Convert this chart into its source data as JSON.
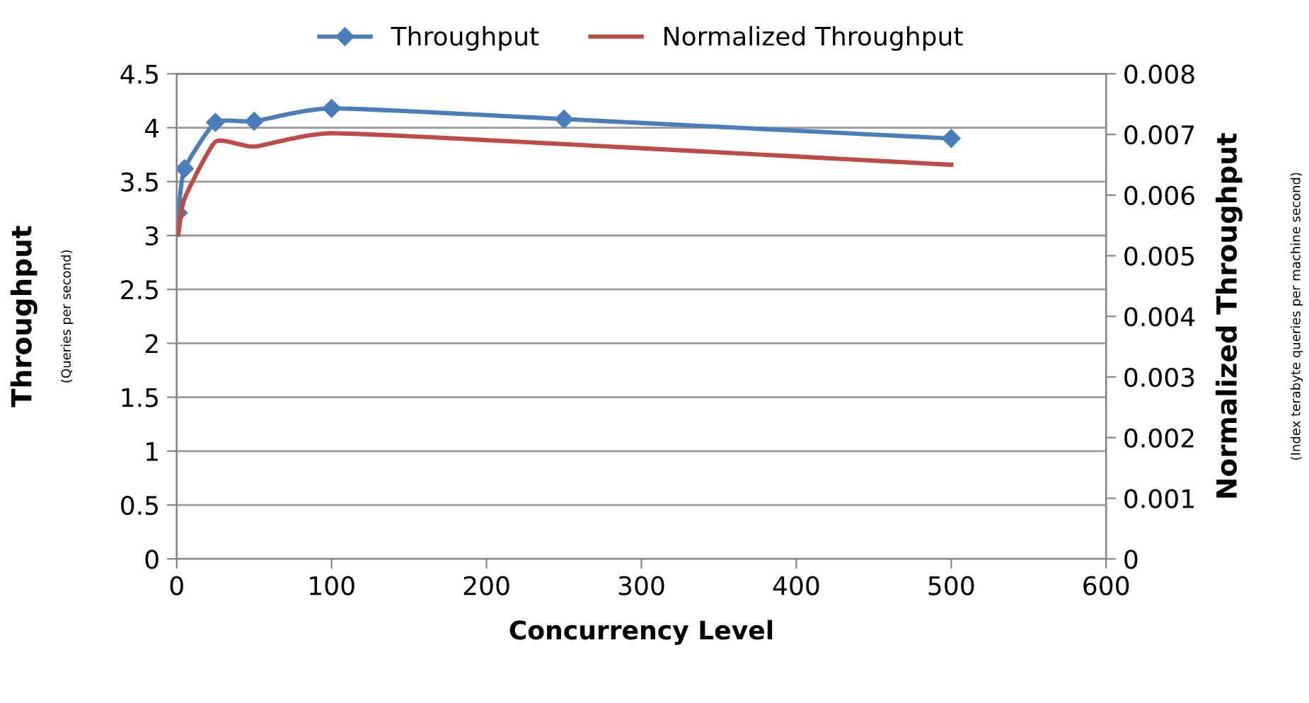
{
  "chart_data": {
    "type": "line",
    "xlabel": "Concurrency Level",
    "ylabel": "Throughput",
    "y2label": "Normalized Throughput",
    "annotations": [
      "(Queries per second)",
      "(Index terabyte queries per machine second)"
    ],
    "xlim": [
      0,
      600
    ],
    "xticks": [
      0,
      100,
      200,
      300,
      400,
      500,
      600
    ],
    "ylim": [
      0,
      4.5
    ],
    "yticks": [
      0,
      0.5,
      1,
      1.5,
      2,
      2.5,
      3,
      3.5,
      4,
      4.5
    ],
    "y2lim": [
      0,
      0.008
    ],
    "y2ticks": [
      0,
      0.001,
      0.002,
      0.003,
      0.004,
      0.005,
      0.006,
      0.007,
      0.008
    ],
    "grid": "y",
    "legend": "top",
    "series": [
      {
        "name": "Throughput",
        "color": "#4a7ebb",
        "marker": "diamond",
        "x": [
          1,
          5,
          25,
          50,
          100,
          250,
          500
        ],
        "values": [
          3.21,
          3.62,
          4.05,
          4.06,
          4.18,
          4.08,
          3.9
        ]
      },
      {
        "name": "Normalized Throughput",
        "color": "#be4b48",
        "marker": "none",
        "axis": "y2",
        "x": [
          1,
          5,
          25,
          50,
          100,
          250,
          500
        ],
        "values": [
          0.00535,
          0.00594,
          0.00688,
          0.0068,
          0.00702,
          0.00684,
          0.0065
        ]
      }
    ]
  }
}
